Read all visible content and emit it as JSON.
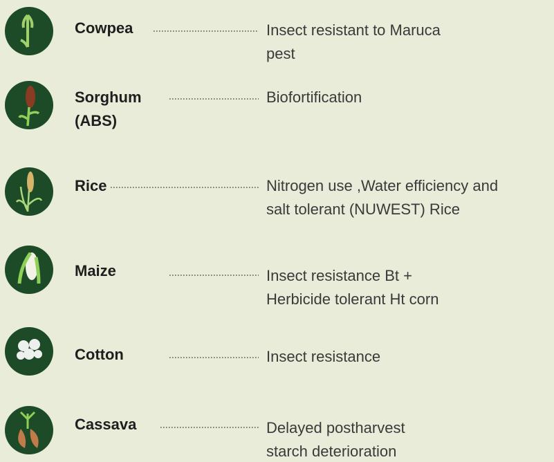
{
  "items": [
    {
      "name_lines": [
        "Cowpea"
      ],
      "description_lines": [
        "Insect resistant to  Maruca",
        "pest"
      ]
    },
    {
      "name_lines": [
        "Sorghum",
        "(ABS)"
      ],
      "description_lines": [
        "Biofortification"
      ]
    },
    {
      "name_lines": [
        "Rice"
      ],
      "description_lines": [
        "Nitrogen use ,Water efficiency and",
        "salt tolerant (NUWEST) Rice"
      ]
    },
    {
      "name_lines": [
        "Maize"
      ],
      "description_lines": [
        "Insect resistance Bt +",
        "Herbicide tolerant  Ht corn"
      ]
    },
    {
      "name_lines": [
        "Cotton"
      ],
      "description_lines": [
        "Insect resistance"
      ]
    },
    {
      "name_lines": [
        "Cassava"
      ],
      "description_lines": [
        "Delayed postharvest",
        "starch deterioration"
      ]
    }
  ]
}
